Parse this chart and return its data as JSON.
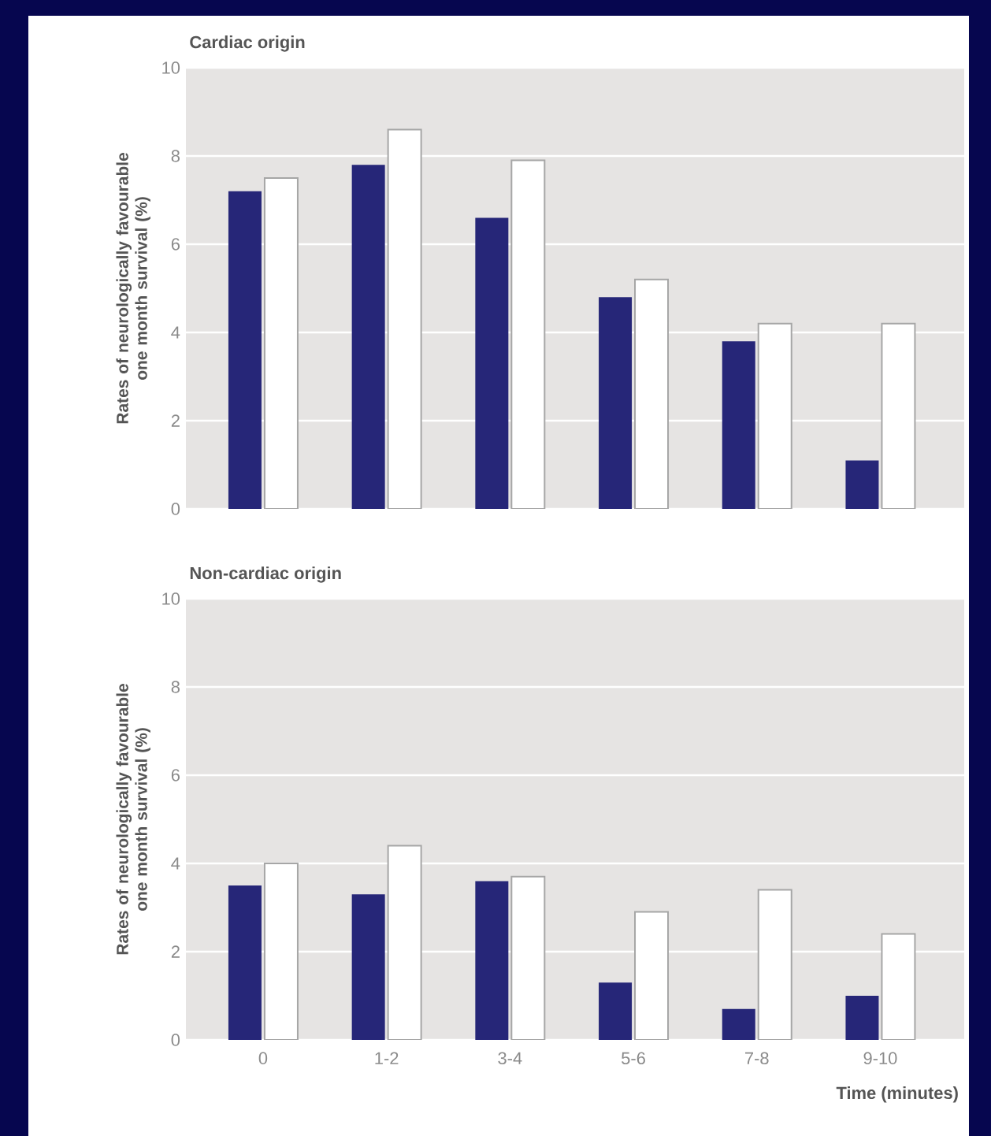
{
  "chart_data": [
    {
      "type": "bar",
      "title": "Cardiac origin",
      "ylabel": "Rates of neurologically favourable one month survival (%)",
      "categories": [
        null,
        null,
        null,
        null,
        null,
        null
      ],
      "series": [
        {
          "color": "#262678",
          "values": [
            7.2,
            7.8,
            6.6,
            4.8,
            3.8,
            1.1
          ]
        },
        {
          "color": "#ffffff",
          "values": [
            7.5,
            8.6,
            7.9,
            5.2,
            4.2,
            4.2
          ]
        }
      ],
      "ylim": [
        0,
        10
      ],
      "yticks": [
        0,
        2,
        4,
        6,
        8,
        10
      ],
      "grid": "y"
    },
    {
      "type": "bar",
      "title": "Non-cardiac origin",
      "xlabel": "Time (minutes)",
      "ylabel": "Rates of neurologically favourable one month survival (%)",
      "categories": [
        "0",
        "1-2",
        "3-4",
        "5-6",
        "7-8",
        "9-10"
      ],
      "series": [
        {
          "color": "#262678",
          "values": [
            3.5,
            3.3,
            3.6,
            1.3,
            0.7,
            1.0
          ]
        },
        {
          "color": "#ffffff",
          "values": [
            4.0,
            4.4,
            3.7,
            2.9,
            3.4,
            2.4
          ]
        }
      ],
      "ylim": [
        0,
        10
      ],
      "yticks": [
        0,
        2,
        4,
        6,
        8,
        10
      ],
      "grid": "y"
    }
  ]
}
